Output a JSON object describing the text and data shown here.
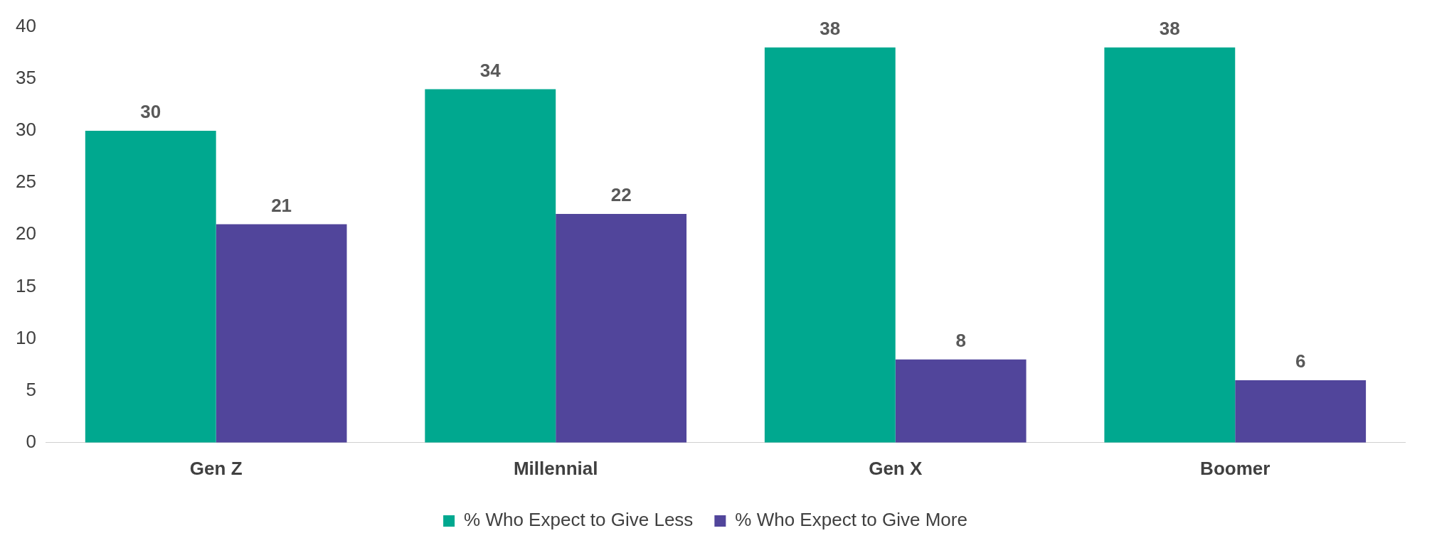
{
  "chart_data": {
    "type": "bar",
    "categories": [
      "Gen Z",
      "Millennial",
      "Gen X",
      "Boomer"
    ],
    "series": [
      {
        "name": "% Who Expect to Give Less",
        "color": "#00a88f",
        "values": [
          30,
          34,
          38,
          38
        ]
      },
      {
        "name": "% Who Expect to Give More",
        "color": "#51459b",
        "values": [
          21,
          22,
          8,
          6
        ]
      }
    ],
    "ylim": [
      0,
      40
    ],
    "yticks": [
      0,
      5,
      10,
      15,
      20,
      25,
      30,
      35,
      40
    ],
    "grid": false,
    "legend": "bottom",
    "data_labels": true
  }
}
